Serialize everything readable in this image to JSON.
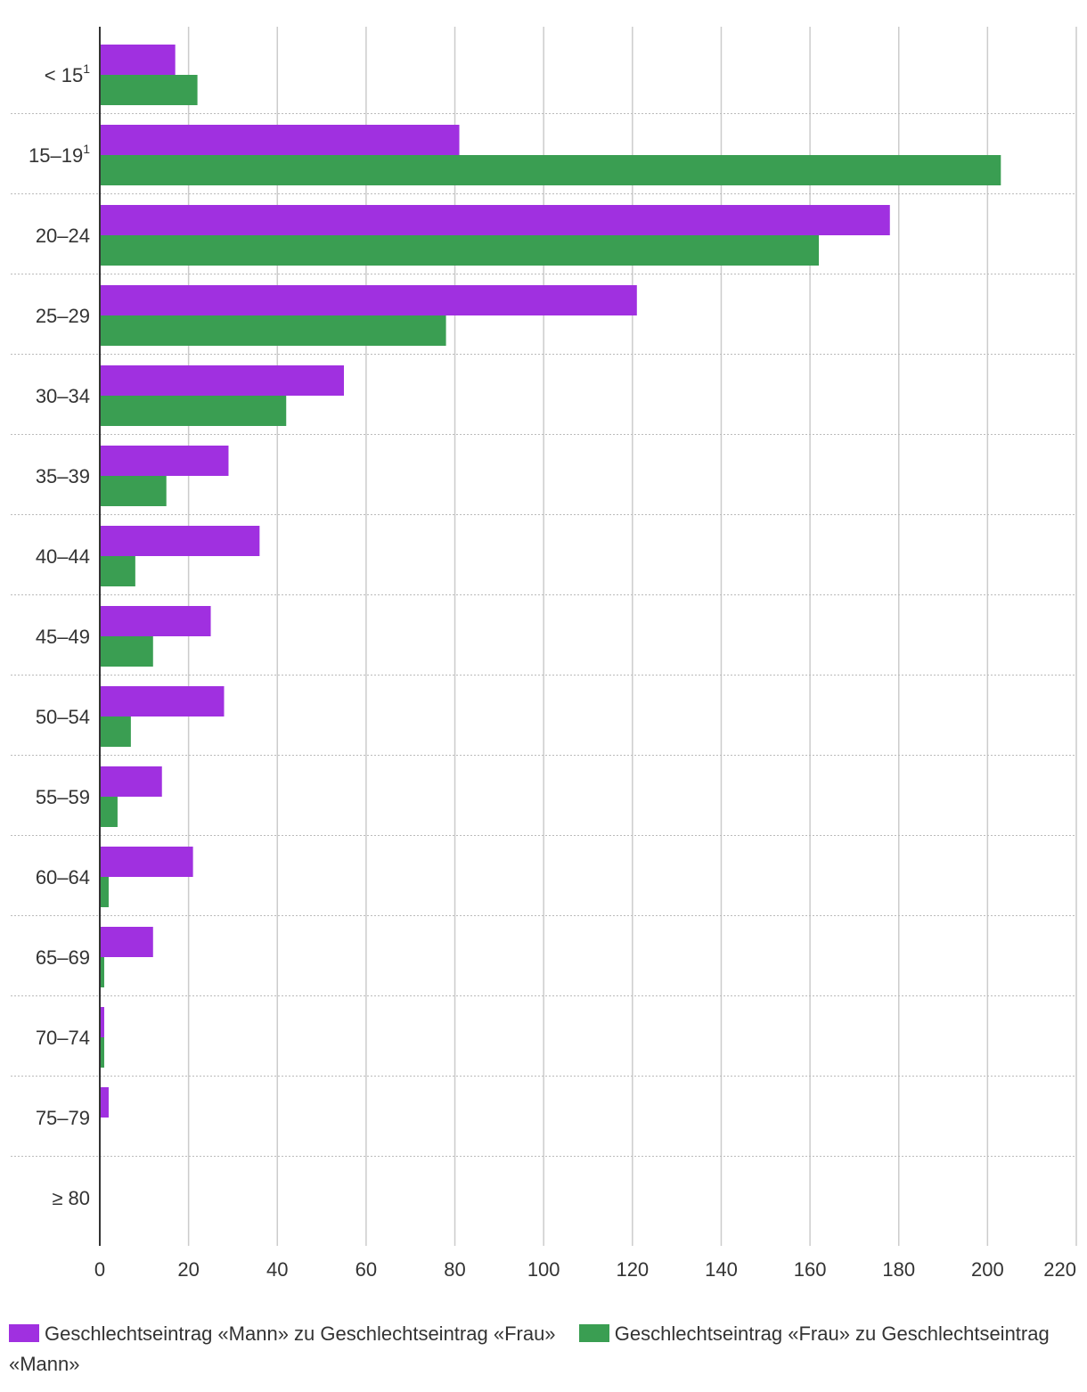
{
  "chart_data": {
    "type": "bar",
    "orientation": "horizontal",
    "categories": [
      {
        "label": "< 15",
        "sup": "1"
      },
      {
        "label": "15–19",
        "sup": "1"
      },
      {
        "label": "20–24",
        "sup": ""
      },
      {
        "label": "25–29",
        "sup": ""
      },
      {
        "label": "30–34",
        "sup": ""
      },
      {
        "label": "35–39",
        "sup": ""
      },
      {
        "label": "40–44",
        "sup": ""
      },
      {
        "label": "45–49",
        "sup": ""
      },
      {
        "label": "50–54",
        "sup": ""
      },
      {
        "label": "55–59",
        "sup": ""
      },
      {
        "label": "60–64",
        "sup": ""
      },
      {
        "label": "65–69",
        "sup": ""
      },
      {
        "label": "70–74",
        "sup": ""
      },
      {
        "label": "75–79",
        "sup": ""
      },
      {
        "label": "≥ 80",
        "sup": ""
      }
    ],
    "series": [
      {
        "name": "Geschlechtseintrag «Mann» zu Geschlechtseintrag «Frau»",
        "color": "#a030e0",
        "values": [
          17,
          81,
          178,
          121,
          55,
          29,
          36,
          25,
          28,
          14,
          21,
          12,
          1,
          2,
          0
        ]
      },
      {
        "name": "Geschlechtseintrag «Frau» zu Geschlechtseintrag «Mann»",
        "color": "#3a9e52",
        "values": [
          22,
          203,
          162,
          78,
          42,
          15,
          8,
          12,
          7,
          4,
          2,
          1,
          1,
          0,
          0
        ]
      }
    ],
    "xlim": [
      0,
      220
    ],
    "xticks": [
      0,
      20,
      40,
      60,
      80,
      100,
      120,
      140,
      160,
      180,
      200,
      220
    ],
    "grid": true,
    "legend": "bottom"
  }
}
